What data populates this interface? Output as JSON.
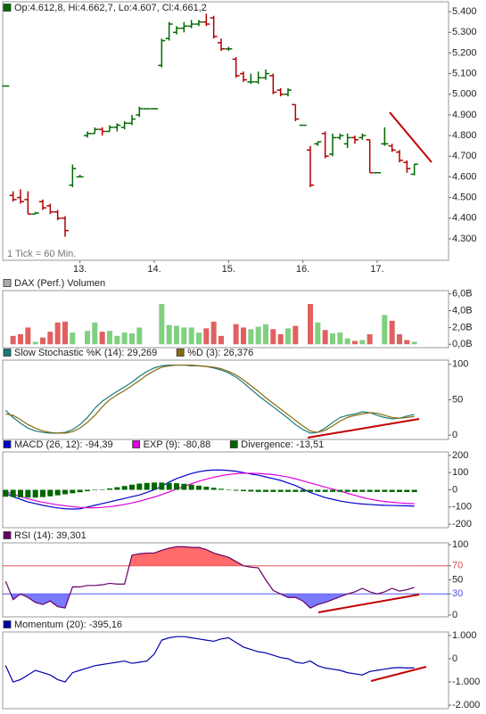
{
  "chart_data": [
    {
      "type": "ohlc",
      "title": "Op:4.612,8, Hi:4.662,7, Lo:4.607, Cl:4.661,2",
      "annotation": "1 Tick = 60 Min.",
      "up_color": "#006a00",
      "down_color": "#b00000",
      "x": [
        -1,
        0,
        1,
        2,
        3,
        4,
        5,
        6,
        7,
        8,
        9,
        10,
        11,
        12,
        13,
        14,
        15,
        16,
        17,
        18,
        19,
        20,
        21,
        22,
        23,
        24,
        25,
        26,
        27,
        28,
        29,
        30,
        31,
        32,
        33,
        34,
        35,
        36,
        37,
        38,
        39,
        40,
        41,
        42,
        43,
        44,
        45,
        46,
        47,
        48,
        49,
        50,
        51,
        52,
        53,
        54
      ],
      "open": [
        5040,
        4510,
        4500,
        4490,
        4420,
        4480,
        4460,
        4430,
        4400,
        4560,
        4600,
        4800,
        4810,
        4830,
        4820,
        4840,
        4840,
        4860,
        4900,
        4930,
        4930,
        5140,
        5270,
        5300,
        5320,
        5330,
        5340,
        5350,
        5370,
        5250,
        5220,
        5170,
        5100,
        5060,
        5060,
        5080,
        5090,
        5020,
        5000,
        4950,
        4850,
        4730,
        4760,
        4810,
        4710,
        4790,
        4760,
        4790,
        4790,
        4780,
        4620,
        4760,
        4750,
        4720,
        4670,
        4612.8
      ],
      "high": [
        5040,
        4530,
        4540,
        4530,
        4430,
        4490,
        4470,
        4440,
        4410,
        4660,
        4610,
        4820,
        4840,
        4840,
        4850,
        4860,
        4870,
        4900,
        4940,
        4930,
        4930,
        5270,
        5350,
        5330,
        5350,
        5360,
        5360,
        5390,
        5380,
        5270,
        5230,
        5180,
        5110,
        5100,
        5110,
        5120,
        5100,
        5030,
        5030,
        4950,
        4850,
        4750,
        4770,
        4820,
        4810,
        4810,
        4810,
        4800,
        4810,
        4780,
        4620,
        4840,
        4760,
        4730,
        4680,
        4662.7
      ],
      "low": [
        5040,
        4480,
        4470,
        4420,
        4420,
        4440,
        4420,
        4390,
        4310,
        4550,
        4600,
        4790,
        4810,
        4800,
        4820,
        4820,
        4830,
        4850,
        4890,
        4930,
        4930,
        5130,
        5260,
        5290,
        5300,
        5320,
        5330,
        5330,
        5270,
        5210,
        5210,
        5080,
        5060,
        5050,
        5050,
        5070,
        5000,
        4990,
        4990,
        4870,
        4850,
        4550,
        4750,
        4690,
        4700,
        4780,
        4740,
        4760,
        4780,
        4620,
        4620,
        4750,
        4720,
        4670,
        4620,
        4607
      ],
      "close": [
        5040,
        4490,
        4480,
        4420,
        4425,
        4450,
        4430,
        4400,
        4340,
        4640,
        4600,
        4810,
        4830,
        4820,
        4840,
        4850,
        4860,
        4880,
        4930,
        4930,
        4930,
        5260,
        5340,
        5320,
        5330,
        5340,
        5350,
        5340,
        5280,
        5220,
        5220,
        5090,
        5070,
        5060,
        5080,
        5100,
        5010,
        5000,
        5020,
        4880,
        4850,
        4560,
        4770,
        4700,
        4790,
        4800,
        4790,
        4780,
        4800,
        4620,
        4620,
        4760,
        4730,
        4680,
        4640,
        4661.2
      ],
      "xlim": [
        -1.4,
        58.6
      ],
      "xticks": [
        {
          "value": 9,
          "label": "13."
        },
        {
          "value": 19,
          "label": "14."
        },
        {
          "value": 29,
          "label": "15."
        },
        {
          "value": 39,
          "label": "16."
        },
        {
          "value": 49,
          "label": "17."
        }
      ],
      "ylim": [
        4196,
        5448
      ],
      "yticks": [
        {
          "value": 4300,
          "label": "4.300"
        },
        {
          "value": 4400,
          "label": "4.400"
        },
        {
          "value": 4500,
          "label": "4.500"
        },
        {
          "value": 4600,
          "label": "4.600"
        },
        {
          "value": 4700,
          "label": "4.700"
        },
        {
          "value": 4800,
          "label": "4.800"
        },
        {
          "value": 4900,
          "label": "4.900"
        },
        {
          "value": 5000,
          "label": "5.000"
        },
        {
          "value": 5100,
          "label": "5.100"
        },
        {
          "value": 5200,
          "label": "5.200"
        },
        {
          "value": 5300,
          "label": "5.300"
        },
        {
          "value": 5400,
          "label": "5.400"
        }
      ]
    },
    {
      "type": "bar",
      "title": "DAX (Perf.) Volumen",
      "color": "#aaaaaa",
      "up_color": "#80d080",
      "down_color": "#e06060",
      "x": [
        -1,
        0,
        1,
        2,
        3,
        4,
        5,
        6,
        7,
        8,
        9,
        10,
        11,
        12,
        13,
        14,
        15,
        16,
        17,
        18,
        19,
        20,
        21,
        22,
        23,
        24,
        25,
        26,
        27,
        28,
        29,
        30,
        31,
        32,
        33,
        34,
        35,
        36,
        37,
        38,
        39,
        40,
        41,
        42,
        43,
        44,
        45,
        46,
        47,
        48,
        49,
        50,
        51,
        52,
        53,
        54
      ],
      "values": [
        null,
        1.0,
        1.2,
        2.0,
        0.3,
        0.8,
        1.5,
        2.6,
        2.7,
        1.4,
        null,
        1.6,
        2.6,
        1.5,
        1.6,
        1.0,
        1.4,
        1.3,
        2.0,
        null,
        null,
        4.8,
        2.3,
        2.2,
        2.0,
        2.0,
        1.4,
        1.9,
        2.7,
        1.0,
        null,
        2.4,
        2.0,
        1.8,
        2.1,
        2.4,
        1.8,
        1.2,
        1.9,
        2.2,
        null,
        4.8,
        2.6,
        1.7,
        1.3,
        1.4,
        0.7,
        0.4,
        0.5,
        1.2,
        null,
        3.5,
        2.8,
        1.2,
        0.5,
        0.3
      ],
      "xlim": [
        -1.4,
        58.6
      ],
      "ylim": [
        -0.4,
        6.4
      ],
      "yticks": [
        {
          "value": 0,
          "label": "0,0B"
        },
        {
          "value": 2,
          "label": "2,0B"
        },
        {
          "value": 4,
          "label": "4,0B"
        },
        {
          "value": 6,
          "label": "6,0B"
        }
      ]
    },
    {
      "type": "line",
      "x": [
        -1,
        0,
        1,
        2,
        3,
        4,
        5,
        6,
        7,
        8,
        9,
        10,
        11,
        12,
        13,
        14,
        15,
        16,
        17,
        18,
        19,
        20,
        21,
        22,
        23,
        24,
        25,
        26,
        27,
        28,
        29,
        30,
        31,
        32,
        33,
        34,
        35,
        36,
        37,
        38,
        39,
        40,
        41,
        42,
        43,
        44,
        45,
        46,
        47,
        48,
        49,
        50,
        51,
        52,
        53,
        54
      ],
      "series": [
        {
          "name": "Slow Stochastic %K (14): 29,269",
          "color": "#1a7a7a",
          "values": [
            35,
            25,
            17,
            10,
            6,
            4,
            3,
            3,
            4,
            8,
            15,
            25,
            38,
            48,
            55,
            62,
            68,
            75,
            83,
            90,
            95,
            98,
            99,
            99,
            99,
            98,
            98,
            97,
            95,
            92,
            88,
            82,
            74,
            65,
            56,
            48,
            40,
            32,
            24,
            15,
            8,
            3,
            4,
            10,
            18,
            25,
            28,
            30,
            33,
            32,
            28,
            25,
            23,
            24,
            27,
            29.269
          ]
        },
        {
          "name": "%D (3): 26,376",
          "color": "#8a6a10",
          "values": [
            30,
            28,
            22,
            15,
            10,
            6,
            4,
            3,
            3,
            5,
            10,
            18,
            28,
            40,
            50,
            57,
            63,
            70,
            77,
            85,
            91,
            96,
            98,
            99,
            99,
            99,
            98,
            97,
            96,
            94,
            90,
            85,
            78,
            70,
            62,
            53,
            45,
            37,
            29,
            21,
            13,
            6,
            4,
            7,
            13,
            20,
            25,
            28,
            30,
            32,
            31,
            28,
            25,
            24,
            25,
            26.376
          ]
        }
      ],
      "xlim": [
        -1.4,
        58.6
      ],
      "ylim": [
        -6,
        106
      ],
      "yticks": [
        0,
        50,
        100
      ]
    },
    {
      "type": "line",
      "x": [
        -1,
        0,
        1,
        2,
        3,
        4,
        5,
        6,
        7,
        8,
        9,
        10,
        11,
        12,
        13,
        14,
        15,
        16,
        17,
        18,
        19,
        20,
        21,
        22,
        23,
        24,
        25,
        26,
        27,
        28,
        29,
        30,
        31,
        32,
        33,
        34,
        35,
        36,
        37,
        38,
        39,
        40,
        41,
        42,
        43,
        44,
        45,
        46,
        47,
        48,
        49,
        50,
        51,
        52,
        53,
        54
      ],
      "series": [
        {
          "name": "MACD (26, 12): -94,39",
          "color": "#0000cc",
          "values": [
            -20,
            -40,
            -55,
            -70,
            -80,
            -90,
            -98,
            -105,
            -110,
            -112,
            -110,
            -100,
            -90,
            -80,
            -70,
            -60,
            -50,
            -40,
            -30,
            -15,
            0,
            20,
            45,
            65,
            80,
            95,
            105,
            112,
            115,
            115,
            112,
            108,
            100,
            92,
            85,
            75,
            65,
            55,
            40,
            25,
            5,
            -15,
            -30,
            -45,
            -55,
            -65,
            -72,
            -78,
            -82,
            -85,
            -88,
            -90,
            -91,
            -92,
            -93,
            -94.39
          ]
        },
        {
          "name": "EXP (9): -80,88",
          "color": "#dd00dd",
          "values": [
            -10,
            -25,
            -40,
            -52,
            -63,
            -72,
            -80,
            -87,
            -93,
            -98,
            -102,
            -104,
            -104,
            -102,
            -98,
            -92,
            -85,
            -76,
            -66,
            -54,
            -42,
            -28,
            -12,
            4,
            20,
            35,
            50,
            62,
            73,
            82,
            89,
            94,
            96,
            96,
            95,
            92,
            88,
            82,
            74,
            64,
            52,
            40,
            28,
            15,
            4,
            -8,
            -20,
            -32,
            -44,
            -54,
            -62,
            -68,
            -72,
            -76,
            -79,
            -80.88
          ]
        },
        {
          "name": "Divergence: -13,51",
          "color": "#006600",
          "render": "bar",
          "values": [
            -40,
            -42,
            -44,
            -45,
            -45,
            -42,
            -38,
            -32,
            -26,
            -20,
            -14,
            -8,
            -3,
            2,
            8,
            15,
            22,
            30,
            36,
            40,
            42,
            42,
            40,
            38,
            35,
            30,
            24,
            18,
            12,
            6,
            0,
            -5,
            -8,
            -10,
            -12,
            -12,
            -12,
            -12,
            -12,
            -12,
            -12,
            -12,
            -12,
            -12,
            -12,
            -12,
            -12,
            -12,
            -12,
            -12,
            -12,
            -12,
            -13,
            -13,
            -13,
            -13.51
          ]
        }
      ],
      "xlim": [
        -1.4,
        58.6
      ],
      "ylim": [
        -220,
        220
      ],
      "yticks": [
        -200,
        -100,
        0,
        100,
        200
      ]
    },
    {
      "type": "line",
      "x": [
        -1,
        0,
        1,
        2,
        3,
        4,
        5,
        6,
        7,
        8,
        9,
        10,
        11,
        12,
        13,
        14,
        15,
        16,
        17,
        18,
        19,
        20,
        21,
        22,
        23,
        24,
        25,
        26,
        27,
        28,
        29,
        30,
        31,
        32,
        33,
        34,
        35,
        36,
        37,
        38,
        39,
        40,
        41,
        42,
        43,
        44,
        45,
        46,
        47,
        48,
        49,
        50,
        51,
        52,
        53,
        54
      ],
      "series": [
        {
          "name": "RSI (14): 39,301",
          "color": "#660066",
          "values": [
            48,
            22,
            30,
            25,
            18,
            15,
            20,
            12,
            10,
            40,
            40,
            42,
            42,
            43,
            45,
            44,
            44,
            85,
            87,
            88,
            88,
            92,
            95,
            97,
            97,
            96,
            96,
            93,
            88,
            85,
            82,
            76,
            70,
            68,
            67,
            50,
            35,
            30,
            25,
            25,
            20,
            10,
            15,
            18,
            22,
            26,
            30,
            33,
            38,
            33,
            30,
            33,
            38,
            34,
            36,
            39.301
          ]
        }
      ],
      "overbought": {
        "value": 70,
        "color": "#e05050",
        "fill": "#ff6b6b"
      },
      "oversold": {
        "value": 30,
        "color": "#5050e0",
        "fill": "#7a7aff"
      },
      "xlim": [
        -1.4,
        58.6
      ],
      "ylim": [
        -2.5,
        102.5
      ],
      "yticks": [
        0,
        30,
        50,
        70,
        100
      ]
    },
    {
      "type": "line",
      "x": [
        -1,
        0,
        1,
        2,
        3,
        4,
        5,
        6,
        7,
        8,
        9,
        10,
        11,
        12,
        13,
        14,
        15,
        16,
        17,
        18,
        19,
        20,
        21,
        22,
        23,
        24,
        25,
        26,
        27,
        28,
        29,
        30,
        31,
        32,
        33,
        34,
        35,
        36,
        37,
        38,
        39,
        40,
        41,
        42,
        43,
        44,
        45,
        46,
        47,
        48,
        49,
        50,
        51,
        52,
        53,
        54
      ],
      "series": [
        {
          "name": "Momentum (20): -395,16",
          "color": "#0000aa",
          "values": [
            -300,
            -1000,
            -900,
            -700,
            -500,
            -600,
            -700,
            -900,
            -1000,
            -600,
            -500,
            -400,
            -300,
            -250,
            -200,
            -150,
            -100,
            -200,
            -150,
            -100,
            200,
            800,
            900,
            950,
            950,
            900,
            850,
            800,
            750,
            850,
            900,
            700,
            500,
            400,
            300,
            250,
            150,
            50,
            0,
            -150,
            -200,
            -100,
            -300,
            -400,
            -450,
            -500,
            -600,
            -650,
            -700,
            -550,
            -500,
            -450,
            -400,
            -380,
            -400,
            -395.16
          ]
        }
      ],
      "xlim": [
        -1.4,
        58.6
      ],
      "ylim": [
        -2150,
        1150
      ],
      "yticks": [
        {
          "value": -2000,
          "label": "-2.000"
        },
        {
          "value": -1000,
          "label": "-1.000"
        },
        0,
        {
          "value": 1000,
          "label": "1.000"
        }
      ]
    }
  ]
}
